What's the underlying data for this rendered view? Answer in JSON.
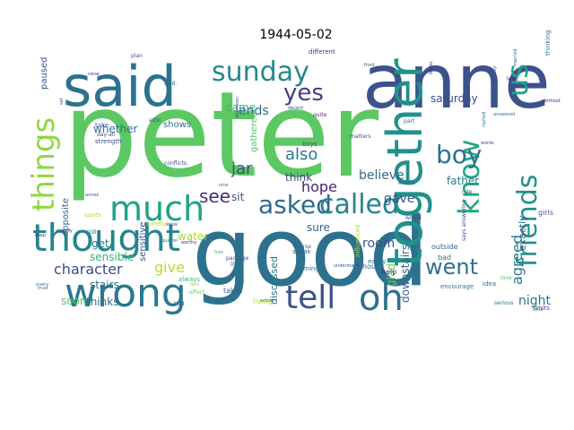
{
  "chart_data": {
    "type": "wordcloud",
    "title": "1944-05-02",
    "background": "#ffffff",
    "palette": "viridis",
    "words": [
      {
        "text": "peter",
        "color": "#5cc863"
      },
      {
        "text": "good",
        "color": "#2c728e"
      },
      {
        "text": "anne",
        "color": "#3b528b"
      },
      {
        "text": "said",
        "color": "#2c728e"
      },
      {
        "text": "together",
        "color": "#21918c"
      },
      {
        "text": "wrong",
        "color": "#2a788e"
      },
      {
        "text": "thought",
        "color": "#25848e"
      },
      {
        "text": "much",
        "color": "#20a386"
      },
      {
        "text": "sunday",
        "color": "#238a8d"
      },
      {
        "text": "things",
        "color": "#8fd744"
      },
      {
        "text": "tell",
        "color": "#3b528b"
      },
      {
        "text": "oh",
        "color": "#2d708e"
      },
      {
        "text": "asked",
        "color": "#2f6c8e"
      },
      {
        "text": "called",
        "color": "#25848e"
      },
      {
        "text": "friends",
        "color": "#21918c"
      },
      {
        "text": "know",
        "color": "#22a884"
      },
      {
        "text": "us",
        "color": "#1fa187"
      },
      {
        "text": "yes",
        "color": "#433e85"
      },
      {
        "text": "boy",
        "color": "#2c728e"
      },
      {
        "text": "see",
        "color": "#472f7d"
      },
      {
        "text": "went",
        "color": "#2c728e"
      },
      {
        "text": "agreed",
        "color": "#2a788e"
      },
      {
        "text": "character",
        "color": "#3e4a89"
      },
      {
        "text": "hope",
        "color": "#482374"
      },
      {
        "text": "believe",
        "color": "#31688e"
      },
      {
        "text": "gave",
        "color": "#3b528b"
      },
      {
        "text": "give",
        "color": "#b5de2b"
      },
      {
        "text": "also",
        "color": "#2a788e"
      },
      {
        "text": "jar",
        "color": "#3e4a89"
      },
      {
        "text": "whether",
        "color": "#2d708e"
      },
      {
        "text": "shows",
        "color": "#2d708e"
      },
      {
        "text": "came",
        "color": "#35b779"
      },
      {
        "text": "ends",
        "color": "#2f6c8e"
      },
      {
        "text": "saturday",
        "color": "#3e4a89"
      },
      {
        "text": "downstairs",
        "color": "#33638d"
      },
      {
        "text": "room",
        "color": "#3b528b"
      },
      {
        "text": "father",
        "color": "#2a788e"
      },
      {
        "text": "night",
        "color": "#2c728e"
      },
      {
        "text": "exactly",
        "color": "#33638d"
      },
      {
        "text": "glad",
        "color": "#6ccd5a"
      },
      {
        "text": "discussed",
        "color": "#2a788e"
      },
      {
        "text": "water",
        "color": "#a5db36"
      },
      {
        "text": "get",
        "color": "#2a788e"
      },
      {
        "text": "sensible",
        "color": "#35b779"
      },
      {
        "text": "stairs",
        "color": "#2d708e"
      },
      {
        "text": "opposite",
        "color": "#33638d"
      },
      {
        "text": "think",
        "color": "#414487"
      },
      {
        "text": "sit",
        "color": "#3b528b"
      },
      {
        "text": "sure",
        "color": "#31688e"
      },
      {
        "text": "soon",
        "color": "#52c569"
      },
      {
        "text": "thinks",
        "color": "#2d708e"
      },
      {
        "text": "paused",
        "color": "#3b528b"
      },
      {
        "text": "gathered",
        "color": "#52c569"
      },
      {
        "text": "sensitive",
        "color": "#3b528b"
      },
      {
        "text": "sports",
        "color": "#9fda3a"
      },
      {
        "text": "careful",
        "color": "#b5de2b"
      },
      {
        "text": "strength",
        "color": "#3e4a89"
      },
      {
        "text": "take",
        "color": "#33638d"
      },
      {
        "text": "day-all",
        "color": "#3e4a89"
      },
      {
        "text": "still",
        "color": "#2a788e"
      },
      {
        "text": "always",
        "color": "#35b779"
      },
      {
        "text": "fact",
        "color": "#8fd744"
      },
      {
        "text": "effect",
        "color": "#6ccd5a"
      },
      {
        "text": "takes",
        "color": "#33638d"
      },
      {
        "text": "like",
        "color": "#31688e"
      },
      {
        "text": "living",
        "color": "#b5de2b"
      },
      {
        "text": "course",
        "color": "#33638d"
      },
      {
        "text": "coming",
        "color": "#2d708e"
      },
      {
        "text": "speak",
        "color": "#33638d"
      },
      {
        "text": "help",
        "color": "#472f7d"
      },
      {
        "text": "easily",
        "color": "#31688e"
      },
      {
        "text": "hour",
        "color": "#33638d"
      },
      {
        "text": "influenced",
        "color": "#a5db36"
      },
      {
        "text": "bad",
        "color": "#2a788e"
      },
      {
        "text": "outside",
        "color": "#33638d"
      },
      {
        "text": "encourage",
        "color": "#2a788e"
      },
      {
        "text": "idea",
        "color": "#2d708e"
      },
      {
        "text": "girls",
        "color": "#3b528b"
      },
      {
        "text": "would",
        "color": "#3b528b"
      },
      {
        "text": "limits",
        "color": "#3e4a89"
      },
      {
        "text": "different",
        "color": "#472f7d"
      },
      {
        "text": "quite",
        "color": "#472f7d"
      },
      {
        "text": "decent",
        "color": "#3e4a89"
      },
      {
        "text": "boys",
        "color": "#3b528b"
      },
      {
        "text": "lead",
        "color": "#472f7d"
      },
      {
        "text": "thinking",
        "color": "#2d708e"
      },
      {
        "text": "role",
        "color": "#3e4a89"
      },
      {
        "text": "kinds",
        "color": "#33638d"
      },
      {
        "text": "time",
        "color": "#2d708e"
      },
      {
        "text": "said.",
        "color": "#33638d"
      },
      {
        "text": "serious",
        "color": "#2a788e"
      },
      {
        "text": "shy",
        "color": "#3b528b"
      },
      {
        "text": "plan",
        "color": "#3b528b"
      },
      {
        "text": "close",
        "color": "#472f7d"
      },
      {
        "text": "already",
        "color": "#414487"
      },
      {
        "text": "every",
        "color": "#2d708e"
      },
      {
        "text": "trust",
        "color": "#2d708e"
      },
      {
        "text": "show",
        "color": "#3e4a89"
      },
      {
        "text": "told",
        "color": "#3b528b"
      },
      {
        "text": "worthy",
        "color": "#472f7d"
      },
      {
        "text": "afternoon",
        "color": "#3e4a89"
      },
      {
        "text": "part",
        "color": "#2a788e"
      },
      {
        "text": "love",
        "color": "#52c569"
      },
      {
        "text": "answered",
        "color": "#2d708e"
      },
      {
        "text": "package",
        "color": "#3b528b"
      },
      {
        "text": "free",
        "color": "#35b779"
      },
      {
        "text": "understand",
        "color": "#3b528b"
      },
      {
        "text": "attic",
        "color": "#3e4a89"
      },
      {
        "text": "matters",
        "color": "#3b528b"
      },
      {
        "text": "conflicts.",
        "color": "#3e4a89"
      },
      {
        "text": "words",
        "color": "#3e4a89"
      },
      {
        "text": "active",
        "color": "#2d708e"
      },
      {
        "text": "keep",
        "color": "#472f7d"
      },
      {
        "text": "annex",
        "color": "#3b528b"
      },
      {
        "text": "set",
        "color": "#3b528b"
      },
      {
        "text": "says answering",
        "color": "#3e4a89"
      },
      {
        "text": "nice",
        "color": "#3b528b"
      },
      {
        "text": "without",
        "color": "#472f7d"
      },
      {
        "text": "quarrel",
        "color": "#2d708e"
      },
      {
        "text": "books",
        "color": "#472f7d"
      },
      {
        "text": "replied",
        "color": "#2a788e"
      },
      {
        "text": "front",
        "color": "#3b528b"
      },
      {
        "text": "seriously",
        "color": "#3b528b"
      },
      {
        "text": "married",
        "color": "#2d708e"
      },
      {
        "text": "shows",
        "color": "#2d708e"
      },
      {
        "text": "warning",
        "color": "#52c569"
      },
      {
        "text": "possible",
        "color": "#2d708e"
      }
    ]
  }
}
